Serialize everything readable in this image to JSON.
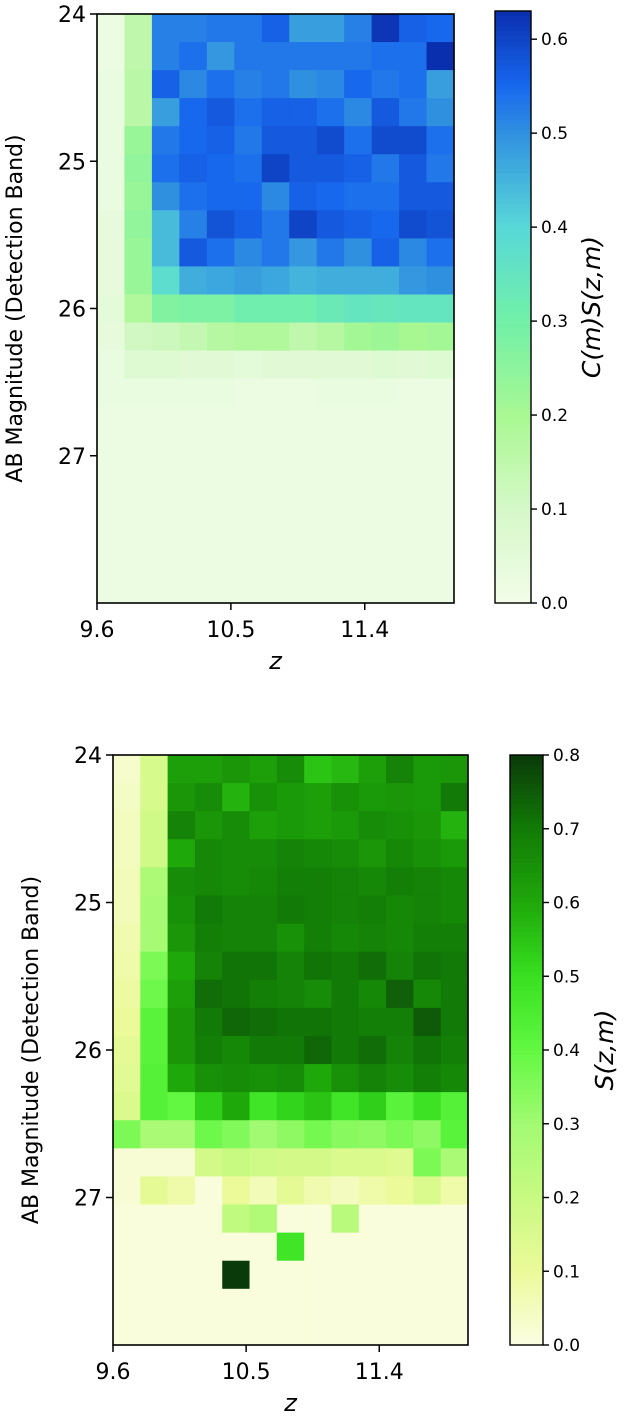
{
  "chart_data": [
    {
      "type": "heatmap",
      "title": "",
      "xlabel": "z",
      "ylabel": "AB Magnitude (Detection Band)",
      "colorbar_label": "C(m)S(z,m)",
      "xlim": [
        9.6,
        12.0
      ],
      "ylim": [
        24,
        28
      ],
      "xticks": [
        {
          "value": 9.6,
          "label": "9.6"
        },
        {
          "value": 10.5,
          "label": "10.5"
        },
        {
          "value": 11.4,
          "label": "11.4"
        }
      ],
      "yticks": [
        {
          "value": 24,
          "label": "24"
        },
        {
          "value": 25,
          "label": "25"
        },
        {
          "value": 26,
          "label": "26"
        },
        {
          "value": 27,
          "label": "27"
        }
      ],
      "colorbar_range": [
        0,
        0.63
      ],
      "colorbar_ticks": [
        {
          "value": 0.0,
          "label": "0.0"
        },
        {
          "value": 0.1,
          "label": "0.1"
        },
        {
          "value": 0.2,
          "label": "0.2"
        },
        {
          "value": 0.3,
          "label": "0.3"
        },
        {
          "value": 0.4,
          "label": "0.4"
        },
        {
          "value": 0.5,
          "label": "0.5"
        },
        {
          "value": 0.6,
          "label": "0.6"
        }
      ],
      "colormap": [
        [
          0,
          "#f2fde9"
        ],
        [
          0.1,
          "#d6f8c8"
        ],
        [
          0.2,
          "#a8f892"
        ],
        [
          0.3,
          "#72f0a8"
        ],
        [
          0.4,
          "#58d8d8"
        ],
        [
          0.5,
          "#3090e0"
        ],
        [
          0.55,
          "#1868ee"
        ],
        [
          0.63,
          "#0a2fae"
        ]
      ],
      "values": [
        [
          0.02,
          0.15,
          0.52,
          0.52,
          0.53,
          0.53,
          0.56,
          0.48,
          0.48,
          0.52,
          0.62,
          0.56,
          0.55
        ],
        [
          0.02,
          0.15,
          0.52,
          0.54,
          0.49,
          0.53,
          0.53,
          0.53,
          0.53,
          0.53,
          0.54,
          0.54,
          0.63
        ],
        [
          0.03,
          0.16,
          0.56,
          0.51,
          0.54,
          0.52,
          0.53,
          0.5,
          0.51,
          0.55,
          0.53,
          0.54,
          0.48
        ],
        [
          0.03,
          0.16,
          0.48,
          0.55,
          0.57,
          0.54,
          0.56,
          0.56,
          0.54,
          0.51,
          0.57,
          0.53,
          0.5
        ],
        [
          0.03,
          0.23,
          0.53,
          0.55,
          0.56,
          0.53,
          0.57,
          0.57,
          0.59,
          0.54,
          0.59,
          0.59,
          0.54
        ],
        [
          0.03,
          0.24,
          0.54,
          0.56,
          0.55,
          0.54,
          0.6,
          0.57,
          0.57,
          0.56,
          0.53,
          0.57,
          0.53
        ],
        [
          0.03,
          0.23,
          0.5,
          0.54,
          0.55,
          0.55,
          0.51,
          0.56,
          0.55,
          0.54,
          0.54,
          0.57,
          0.57
        ],
        [
          0.04,
          0.24,
          0.44,
          0.52,
          0.58,
          0.56,
          0.53,
          0.6,
          0.57,
          0.56,
          0.55,
          0.59,
          0.58
        ],
        [
          0.04,
          0.23,
          0.44,
          0.57,
          0.54,
          0.51,
          0.53,
          0.49,
          0.53,
          0.5,
          0.56,
          0.51,
          0.54
        ],
        [
          0.04,
          0.23,
          0.38,
          0.46,
          0.47,
          0.48,
          0.47,
          0.45,
          0.46,
          0.46,
          0.46,
          0.49,
          0.5
        ],
        [
          0.05,
          0.18,
          0.27,
          0.28,
          0.28,
          0.31,
          0.31,
          0.31,
          0.33,
          0.35,
          0.34,
          0.35,
          0.35
        ],
        [
          0.04,
          0.11,
          0.12,
          0.14,
          0.17,
          0.18,
          0.18,
          0.15,
          0.17,
          0.21,
          0.22,
          0.2,
          0.21
        ],
        [
          0.03,
          0.07,
          0.07,
          0.06,
          0.06,
          0.05,
          0.06,
          0.06,
          0.06,
          0.06,
          0.07,
          0.06,
          0.07
        ],
        [
          0.03,
          0.03,
          0.03,
          0.03,
          0.03,
          0.02,
          0.02,
          0.02,
          0.03,
          0.03,
          0.03,
          0.02,
          0.02
        ],
        [
          0.02,
          0.02,
          0.02,
          0.02,
          0.02,
          0.02,
          0.02,
          0.02,
          0.02,
          0.02,
          0.02,
          0.02,
          0.02
        ],
        [
          0.02,
          0.02,
          0.02,
          0.02,
          0.02,
          0.02,
          0.02,
          0.02,
          0.02,
          0.02,
          0.02,
          0.02,
          0.02
        ],
        [
          0.02,
          0.02,
          0.02,
          0.02,
          0.02,
          0.02,
          0.02,
          0.02,
          0.02,
          0.02,
          0.02,
          0.02,
          0.02
        ],
        [
          0.02,
          0.02,
          0.02,
          0.02,
          0.02,
          0.02,
          0.02,
          0.02,
          0.02,
          0.02,
          0.02,
          0.02,
          0.02
        ],
        [
          0.02,
          0.02,
          0.02,
          0.02,
          0.02,
          0.02,
          0.02,
          0.02,
          0.02,
          0.02,
          0.02,
          0.02,
          0.02
        ],
        [
          0.02,
          0.02,
          0.02,
          0.02,
          0.02,
          0.02,
          0.02,
          0.02,
          0.02,
          0.02,
          0.02,
          0.02,
          0.02
        ],
        [
          0.02,
          0.02,
          0.02,
          0.02,
          0.02,
          0.02,
          0.02,
          0.02,
          0.02,
          0.02,
          0.02,
          0.02,
          0.02
        ]
      ]
    },
    {
      "type": "heatmap",
      "title": "",
      "xlabel": "z",
      "ylabel": "AB Magnitude (Detection Band)",
      "colorbar_label": "S(z,m)",
      "xlim": [
        9.6,
        12.0
      ],
      "ylim": [
        24,
        28
      ],
      "xticks": [
        {
          "value": 9.6,
          "label": "9.6"
        },
        {
          "value": 10.5,
          "label": "10.5"
        },
        {
          "value": 11.4,
          "label": "11.4"
        }
      ],
      "yticks": [
        {
          "value": 24,
          "label": "24"
        },
        {
          "value": 25,
          "label": "25"
        },
        {
          "value": 26,
          "label": "26"
        },
        {
          "value": 27,
          "label": "27"
        }
      ],
      "colorbar_range": [
        0,
        0.8
      ],
      "colorbar_ticks": [
        {
          "value": 0.0,
          "label": "0.0"
        },
        {
          "value": 0.1,
          "label": "0.1"
        },
        {
          "value": 0.2,
          "label": "0.2"
        },
        {
          "value": 0.3,
          "label": "0.3"
        },
        {
          "value": 0.4,
          "label": "0.4"
        },
        {
          "value": 0.5,
          "label": "0.5"
        },
        {
          "value": 0.6,
          "label": "0.6"
        },
        {
          "value": 0.7,
          "label": "0.7"
        },
        {
          "value": 0.8,
          "label": "0.8"
        }
      ],
      "colormap": [
        [
          0,
          "#fafde2"
        ],
        [
          0.1,
          "#ecfa9a"
        ],
        [
          0.2,
          "#c8fa82"
        ],
        [
          0.3,
          "#a2fa72"
        ],
        [
          0.4,
          "#62f842"
        ],
        [
          0.5,
          "#38e020"
        ],
        [
          0.6,
          "#1fa80a"
        ],
        [
          0.7,
          "#127a06"
        ],
        [
          0.8,
          "#0a3a0a"
        ]
      ],
      "values": [
        [
          0.03,
          0.16,
          0.62,
          0.62,
          0.64,
          0.62,
          0.66,
          0.55,
          0.57,
          0.62,
          0.68,
          0.63,
          0.64
        ],
        [
          0.04,
          0.16,
          0.64,
          0.66,
          0.58,
          0.65,
          0.63,
          0.62,
          0.65,
          0.63,
          0.64,
          0.63,
          0.7
        ],
        [
          0.05,
          0.18,
          0.68,
          0.64,
          0.66,
          0.62,
          0.63,
          0.62,
          0.63,
          0.66,
          0.65,
          0.64,
          0.58
        ],
        [
          0.05,
          0.18,
          0.6,
          0.67,
          0.66,
          0.66,
          0.68,
          0.67,
          0.66,
          0.64,
          0.67,
          0.65,
          0.63
        ],
        [
          0.06,
          0.27,
          0.66,
          0.67,
          0.66,
          0.67,
          0.69,
          0.69,
          0.68,
          0.67,
          0.69,
          0.68,
          0.67
        ],
        [
          0.06,
          0.29,
          0.65,
          0.7,
          0.68,
          0.68,
          0.7,
          0.69,
          0.68,
          0.69,
          0.67,
          0.68,
          0.67
        ],
        [
          0.07,
          0.29,
          0.64,
          0.69,
          0.68,
          0.68,
          0.65,
          0.69,
          0.67,
          0.68,
          0.67,
          0.69,
          0.69
        ],
        [
          0.08,
          0.36,
          0.6,
          0.68,
          0.71,
          0.71,
          0.68,
          0.71,
          0.7,
          0.72,
          0.68,
          0.71,
          0.7
        ],
        [
          0.09,
          0.38,
          0.62,
          0.72,
          0.71,
          0.69,
          0.68,
          0.66,
          0.7,
          0.67,
          0.74,
          0.67,
          0.7
        ],
        [
          0.1,
          0.42,
          0.64,
          0.7,
          0.73,
          0.72,
          0.71,
          0.71,
          0.7,
          0.69,
          0.69,
          0.75,
          0.7
        ],
        [
          0.12,
          0.42,
          0.64,
          0.69,
          0.67,
          0.7,
          0.7,
          0.73,
          0.7,
          0.72,
          0.68,
          0.71,
          0.69
        ],
        [
          0.13,
          0.43,
          0.6,
          0.65,
          0.66,
          0.65,
          0.66,
          0.6,
          0.65,
          0.68,
          0.66,
          0.69,
          0.67
        ],
        [
          0.15,
          0.43,
          0.4,
          0.53,
          0.6,
          0.48,
          0.52,
          0.55,
          0.48,
          0.53,
          0.42,
          0.49,
          0.43
        ],
        [
          0.36,
          0.28,
          0.28,
          0.38,
          0.35,
          0.3,
          0.33,
          0.37,
          0.34,
          0.33,
          0.36,
          0.33,
          0.42
        ],
        [
          0.02,
          0.02,
          0.02,
          0.17,
          0.2,
          0.18,
          0.17,
          0.17,
          0.15,
          0.15,
          0.14,
          0.36,
          0.28
        ],
        [
          0.02,
          0.12,
          0.08,
          0.01,
          0.1,
          0.06,
          0.12,
          0.07,
          0.05,
          0.08,
          0.1,
          0.15,
          0.08
        ],
        [
          0.01,
          0.01,
          0.01,
          0.01,
          0.22,
          0.26,
          0.01,
          0.01,
          0.24,
          0.01,
          0.01,
          0.01,
          0.01
        ],
        [
          0.01,
          0.01,
          0.01,
          0.01,
          0.01,
          0.01,
          0.48,
          0.01,
          0.01,
          0.01,
          0.01,
          0.01,
          0.01
        ],
        [
          0.01,
          0.01,
          0.01,
          0.01,
          0.8,
          0.01,
          0.01,
          0.01,
          0.01,
          0.01,
          0.01,
          0.01,
          0.01
        ],
        [
          0.01,
          0.01,
          0.01,
          0.01,
          0.01,
          0.01,
          0.01,
          0.01,
          0.01,
          0.01,
          0.01,
          0.01,
          0.01
        ],
        [
          0.01,
          0.01,
          0.01,
          0.01,
          0.01,
          0.01,
          0.01,
          0.01,
          0.01,
          0.01,
          0.01,
          0.01,
          0.01
        ]
      ]
    }
  ]
}
